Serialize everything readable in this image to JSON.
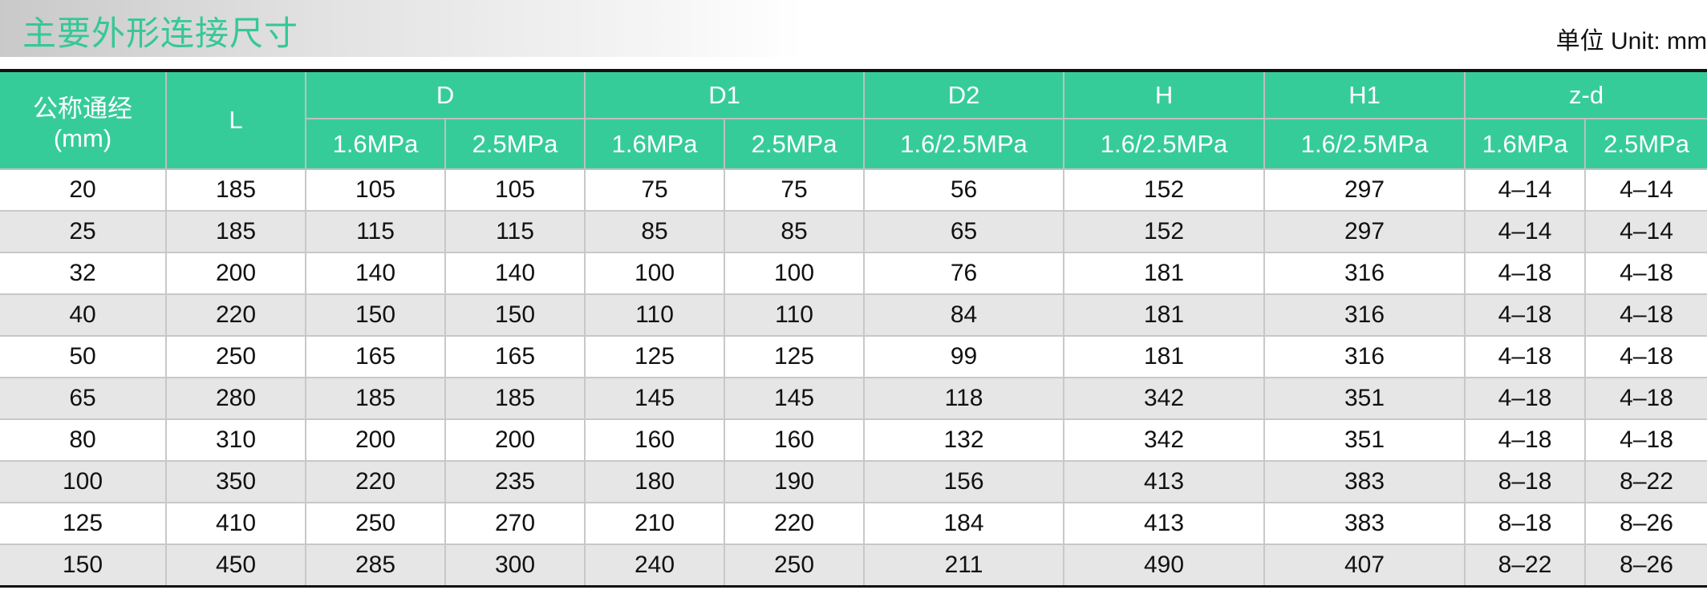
{
  "title": "主要外形连接尺寸",
  "unit": "单位 Unit: mm",
  "colors": {
    "header_bg": "#36cc9a",
    "title_text": "#35c896",
    "alt_row": "#e6e6e6"
  },
  "header": {
    "dn_line1": "公称通经",
    "dn_line2": "(mm)",
    "L": "L",
    "D": "D",
    "D1": "D1",
    "D2": "D2",
    "H": "H",
    "H1": "H1",
    "zd": "z-d",
    "sub": [
      "1.6MPa",
      "2.5MPa",
      "1.6MPa",
      "2.5MPa",
      "1.6/2.5MPa",
      "1.6/2.5MPa",
      "1.6/2.5MPa",
      "1.6MPa",
      "2.5MPa"
    ]
  },
  "rows": [
    [
      "20",
      "185",
      "105",
      "105",
      "75",
      "75",
      "56",
      "152",
      "297",
      "4–14",
      "4–14"
    ],
    [
      "25",
      "185",
      "115",
      "115",
      "85",
      "85",
      "65",
      "152",
      "297",
      "4–14",
      "4–14"
    ],
    [
      "32",
      "200",
      "140",
      "140",
      "100",
      "100",
      "76",
      "181",
      "316",
      "4–18",
      "4–18"
    ],
    [
      "40",
      "220",
      "150",
      "150",
      "110",
      "110",
      "84",
      "181",
      "316",
      "4–18",
      "4–18"
    ],
    [
      "50",
      "250",
      "165",
      "165",
      "125",
      "125",
      "99",
      "181",
      "316",
      "4–18",
      "4–18"
    ],
    [
      "65",
      "280",
      "185",
      "185",
      "145",
      "145",
      "118",
      "342",
      "351",
      "4–18",
      "4–18"
    ],
    [
      "80",
      "310",
      "200",
      "200",
      "160",
      "160",
      "132",
      "342",
      "351",
      "4–18",
      "4–18"
    ],
    [
      "100",
      "350",
      "220",
      "235",
      "180",
      "190",
      "156",
      "413",
      "383",
      "8–18",
      "8–22"
    ],
    [
      "125",
      "410",
      "250",
      "270",
      "210",
      "220",
      "184",
      "413",
      "383",
      "8–18",
      "8–26"
    ],
    [
      "150",
      "450",
      "285",
      "300",
      "240",
      "250",
      "211",
      "490",
      "407",
      "8–22",
      "8–26"
    ]
  ]
}
